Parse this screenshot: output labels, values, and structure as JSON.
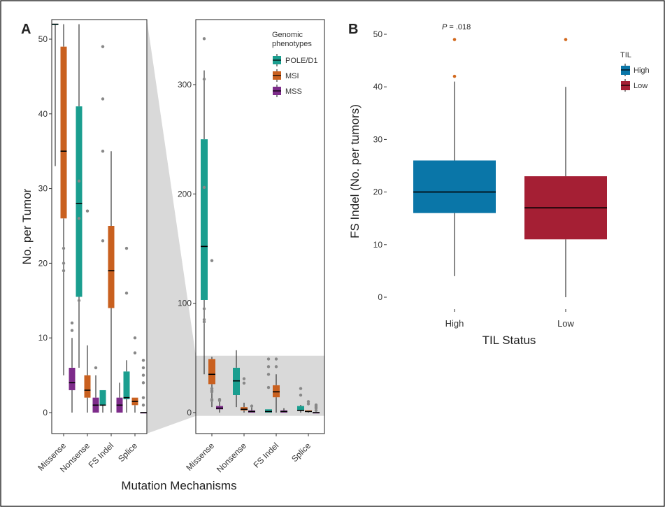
{
  "figure": {
    "panel_a_label": "A",
    "panel_b_label": "B",
    "colors": {
      "POLE/D1": "#1a9e8f",
      "MSI": "#c9601f",
      "MSS": "#7d2b8a",
      "High": "#0a76a8",
      "Low": "#a51f34",
      "outlier_grey": "#888888",
      "outlier_b": "#d2691e",
      "zoom_band": "#d9d9d9"
    }
  },
  "chart_data": [
    {
      "id": "A-left",
      "type": "box",
      "xlabel": "Mutation Mechanisms",
      "ylabel": "No. per Tumor",
      "ylim": [
        0,
        52
      ],
      "yticks": [
        0,
        10,
        20,
        30,
        40,
        50
      ],
      "categories": [
        "Missense",
        "Nonsense",
        "FS Indel",
        "Splice"
      ],
      "series": [
        {
          "name": "POLE/D1",
          "boxes": [
            {
              "category": "Missense",
              "whislo": 33,
              "q1": 52,
              "med": 52,
              "q3": 52,
              "whishi": 52,
              "fliers": []
            },
            {
              "category": "Nonsense",
              "whislo": 6,
              "q1": 15.5,
              "med": 28,
              "q3": 41,
              "whishi": 52,
              "fliers": [
                31,
                26,
                15
              ]
            },
            {
              "category": "FS Indel",
              "whislo": 0,
              "q1": 1,
              "med": 1,
              "q3": 3,
              "whishi": 3,
              "fliers": [
                49,
                42,
                35,
                23
              ]
            },
            {
              "category": "Splice",
              "whislo": 0,
              "q1": 1.8,
              "med": 2,
              "q3": 5.5,
              "whishi": 7,
              "fliers": [
                22,
                16
              ]
            }
          ]
        },
        {
          "name": "MSI",
          "boxes": [
            {
              "category": "Missense",
              "whislo": 5,
              "q1": 26,
              "med": 35,
              "q3": 49,
              "whishi": 52,
              "fliers": [
                22,
                20,
                19
              ]
            },
            {
              "category": "Nonsense",
              "whislo": 0,
              "q1": 2,
              "med": 3,
              "q3": 5,
              "whishi": 9,
              "fliers": [
                27
              ]
            },
            {
              "category": "FS Indel",
              "whislo": 0,
              "q1": 14,
              "med": 19,
              "q3": 25,
              "whishi": 35,
              "fliers": []
            },
            {
              "category": "Splice",
              "whislo": 0,
              "q1": 1,
              "med": 1.5,
              "q3": 2,
              "whishi": 2,
              "fliers": [
                10,
                8
              ]
            }
          ]
        },
        {
          "name": "MSS",
          "boxes": [
            {
              "category": "Missense",
              "whislo": 0,
              "q1": 3,
              "med": 4,
              "q3": 6,
              "whishi": 10,
              "fliers": [
                12,
                11
              ]
            },
            {
              "category": "Nonsense",
              "whislo": 0,
              "q1": 0,
              "med": 1,
              "q3": 2,
              "whishi": 5,
              "fliers": [
                6
              ]
            },
            {
              "category": "FS Indel",
              "whislo": 0,
              "q1": 0,
              "med": 1,
              "q3": 2,
              "whishi": 4,
              "fliers": []
            },
            {
              "category": "Splice",
              "whislo": 0,
              "q1": 0,
              "med": 0,
              "q3": 0,
              "whishi": 0,
              "fliers": [
                7,
                6,
                5,
                4,
                2,
                1
              ]
            }
          ]
        }
      ]
    },
    {
      "id": "A-right",
      "type": "box",
      "ylim": [
        -3,
        352
      ],
      "yticks": [
        0,
        100,
        200,
        300
      ],
      "zoom_band": [
        -3,
        52
      ],
      "categories": [
        "Missense",
        "Nonsense",
        "FS Indel",
        "Splice"
      ],
      "legend": {
        "title": "Genomic phenotypes",
        "title_lines": [
          "Genomic",
          "phenotypes"
        ],
        "items": [
          "POLE/D1",
          "MSI",
          "MSS"
        ],
        "position": "top-right"
      },
      "series": [
        {
          "name": "POLE/D1",
          "boxes": [
            {
              "category": "Missense",
              "whislo": 35,
              "q1": 103,
              "med": 152,
              "q3": 250,
              "whishi": 313,
              "fliers": [
                342,
                305,
                206,
                95,
                85,
                83
              ]
            },
            {
              "category": "Nonsense",
              "whislo": 5,
              "q1": 16,
              "med": 29,
              "q3": 41,
              "whishi": 57,
              "fliers": []
            },
            {
              "category": "FS Indel",
              "whislo": 0,
              "q1": 0,
              "med": 1,
              "q3": 3,
              "whishi": 3,
              "fliers": [
                49,
                42,
                35,
                23
              ]
            },
            {
              "category": "Splice",
              "whislo": 0,
              "q1": 2,
              "med": 2,
              "q3": 6,
              "whishi": 7,
              "fliers": [
                22,
                16
              ]
            }
          ]
        },
        {
          "name": "MSI",
          "boxes": [
            {
              "category": "Missense",
              "whislo": 5,
              "q1": 26,
              "med": 35,
              "q3": 49,
              "whishi": 51,
              "fliers": [
                139,
                22,
                20,
                19,
                12,
                11
              ]
            },
            {
              "category": "Nonsense",
              "whislo": 0,
              "q1": 2,
              "med": 3,
              "q3": 5,
              "whishi": 9,
              "fliers": [
                27,
                31
              ]
            },
            {
              "category": "FS Indel",
              "whislo": 0,
              "q1": 14,
              "med": 19,
              "q3": 25,
              "whishi": 35,
              "fliers": [
                42,
                49
              ]
            },
            {
              "category": "Splice",
              "whislo": 0,
              "q1": 1,
              "med": 1,
              "q3": 2,
              "whishi": 2,
              "fliers": [
                10,
                8
              ]
            }
          ]
        },
        {
          "name": "MSS",
          "boxes": [
            {
              "category": "Missense",
              "whislo": 0,
              "q1": 3,
              "med": 4,
              "q3": 6,
              "whishi": 10,
              "fliers": [
                12,
                11
              ]
            },
            {
              "category": "Nonsense",
              "whislo": 0,
              "q1": 0,
              "med": 1,
              "q3": 2,
              "whishi": 5,
              "fliers": [
                6
              ]
            },
            {
              "category": "FS Indel",
              "whislo": 0,
              "q1": 0,
              "med": 1,
              "q3": 2,
              "whishi": 4,
              "fliers": []
            },
            {
              "category": "Splice",
              "whislo": 0,
              "q1": 0,
              "med": 0,
              "q3": 0,
              "whishi": 0,
              "fliers": [
                7,
                6,
                5,
                4,
                2
              ]
            }
          ]
        }
      ]
    },
    {
      "id": "B",
      "type": "box",
      "xlabel": "TIL Status",
      "ylabel": "FS Indel (No. per tumors)",
      "ylim": [
        -2,
        52
      ],
      "yticks": [
        0,
        10,
        20,
        30,
        40,
        50
      ],
      "categories": [
        "High",
        "Low"
      ],
      "annotation": {
        "italic": "P",
        "text": " = .018"
      },
      "legend": {
        "title": "TIL",
        "items": [
          "High",
          "Low"
        ],
        "position": "right"
      },
      "series": [
        {
          "name": "High",
          "boxes": [
            {
              "category": "High",
              "whislo": 4,
              "q1": 16,
              "med": 20,
              "q3": 26,
              "whishi": 41,
              "fliers": [
                42,
                49
              ]
            }
          ]
        },
        {
          "name": "Low",
          "boxes": [
            {
              "category": "Low",
              "whislo": 0,
              "q1": 11,
              "med": 17,
              "q3": 23,
              "whishi": 40,
              "fliers": [
                49
              ]
            }
          ]
        }
      ]
    }
  ]
}
